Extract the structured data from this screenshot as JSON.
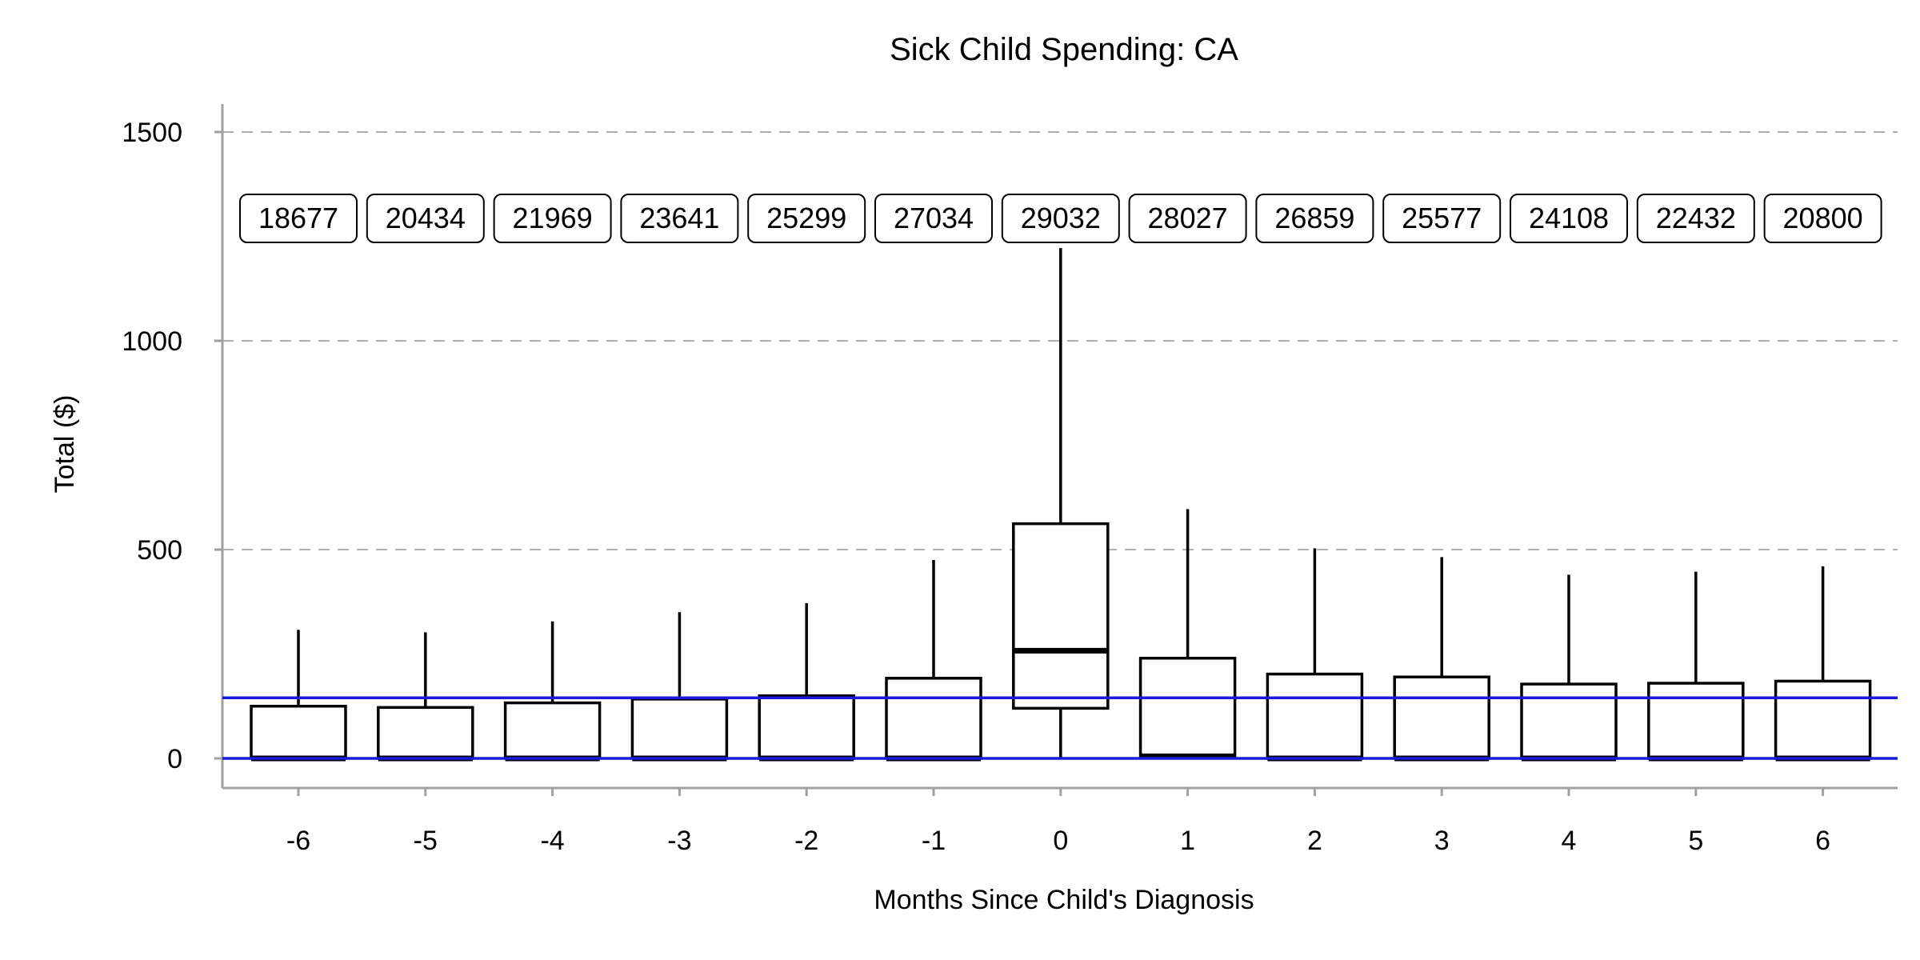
{
  "chart_data": {
    "type": "boxplot",
    "title": "Sick Child Spending: CA",
    "xlabel": "Months Since Child's Diagnosis",
    "ylabel": "Total ($)",
    "ylim": [
      -70,
      1580
    ],
    "yticks": [
      0,
      500,
      1000,
      1500
    ],
    "grid": "horizontal dashed",
    "categories": [
      "-6",
      "-5",
      "-4",
      "-3",
      "-2",
      "-1",
      "0",
      "1",
      "2",
      "3",
      "4",
      "5",
      "6"
    ],
    "counts": [
      "18677",
      "20434",
      "21969",
      "23641",
      "25299",
      "27034",
      "29032",
      "28027",
      "26859",
      "25577",
      "24108",
      "22432",
      "20800"
    ],
    "boxes": [
      {
        "min": 0,
        "q1": 0,
        "median": 0,
        "q3": 125,
        "max": 308
      },
      {
        "min": 0,
        "q1": 0,
        "median": 0,
        "q3": 122,
        "max": 302
      },
      {
        "min": 0,
        "q1": 0,
        "median": 0,
        "q3": 133,
        "max": 328
      },
      {
        "min": 0,
        "q1": 0,
        "median": 0,
        "q3": 142,
        "max": 350
      },
      {
        "min": 0,
        "q1": 0,
        "median": 0,
        "q3": 150,
        "max": 372
      },
      {
        "min": 0,
        "q1": 0,
        "median": 0,
        "q3": 192,
        "max": 475
      },
      {
        "min": 0,
        "q1": 120,
        "median": 258,
        "q3": 562,
        "max": 1222
      },
      {
        "min": 0,
        "q1": 5,
        "median": 5,
        "q3": 240,
        "max": 597
      },
      {
        "min": 0,
        "q1": 0,
        "median": 0,
        "q3": 202,
        "max": 503
      },
      {
        "min": 0,
        "q1": 0,
        "median": 0,
        "q3": 195,
        "max": 482
      },
      {
        "min": 0,
        "q1": 0,
        "median": 0,
        "q3": 178,
        "max": 440
      },
      {
        "min": 0,
        "q1": 0,
        "median": 0,
        "q3": 180,
        "max": 447
      },
      {
        "min": 0,
        "q1": 0,
        "median": 0,
        "q3": 185,
        "max": 460
      }
    ],
    "reference_lines": [
      {
        "y": 0,
        "color": "#1a1adb"
      },
      {
        "y": 145,
        "color": "#1a1adb"
      }
    ]
  }
}
